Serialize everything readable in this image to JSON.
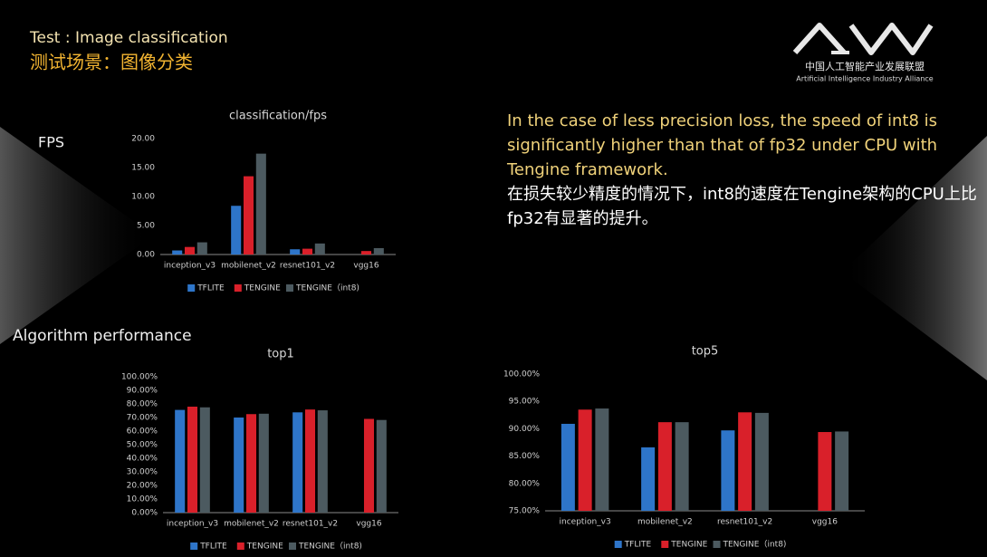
{
  "header": {
    "title": "Test : Image classification",
    "subtitle": "测试场景：图像分类"
  },
  "logo": {
    "name_cn": "中国人工智能产业发展联盟",
    "name_en": "Artificial Intelligence Industry Alliance"
  },
  "sections": {
    "fps": "FPS",
    "performance": "Algorithm performance"
  },
  "description": {
    "en": "In the case of less precision loss, the speed of int8 is significantly higher than that of fp32 under CPU with Tengine framework.",
    "cn": "在损失较少精度的情况下，int8的速度在Tengine架构的CPU上比fp32有显著的提升。"
  },
  "chart_data": [
    {
      "type": "bar",
      "title": "classification/fps",
      "categories": [
        "inception_v3",
        "mobilenet_v2",
        "resnet101_v2",
        "vgg16"
      ],
      "series": [
        {
          "name": "TFLITE",
          "color": "#2e75c9",
          "values": [
            0.7,
            8.4,
            0.9,
            null
          ]
        },
        {
          "name": "TENGINE",
          "color": "#d9202a",
          "values": [
            1.3,
            13.5,
            1.0,
            0.6
          ]
        },
        {
          "name": "TENGINE（int8)",
          "color": "#4c5a60",
          "values": [
            2.1,
            17.4,
            1.9,
            1.1
          ]
        }
      ],
      "ylim": [
        0,
        20
      ],
      "yticks": [
        {
          "value": 0,
          "label": "0.00"
        },
        {
          "value": 5,
          "label": "5.00"
        },
        {
          "value": 10,
          "label": "10.00"
        },
        {
          "value": 15,
          "label": "15.00"
        },
        {
          "value": 20,
          "label": "20.00"
        }
      ]
    },
    {
      "type": "bar",
      "title": "top1",
      "categories": [
        "inception_v3",
        "mobilenet_v2",
        "resnet101_v2",
        "vgg16"
      ],
      "series": [
        {
          "name": "TFLITE",
          "color": "#2e75c9",
          "values": [
            75.6,
            70.0,
            73.8,
            null
          ]
        },
        {
          "name": "TENGINE",
          "color": "#d9202a",
          "values": [
            78.0,
            72.5,
            75.9,
            69.0
          ]
        },
        {
          "name": "TENGINE（int8)",
          "color": "#4c5a60",
          "values": [
            77.5,
            72.8,
            75.3,
            68.2
          ]
        }
      ],
      "ylim": [
        0,
        100
      ],
      "yticks": [
        {
          "value": 0,
          "label": "0.00%"
        },
        {
          "value": 10,
          "label": "10.00%"
        },
        {
          "value": 20,
          "label": "20.00%"
        },
        {
          "value": 30,
          "label": "30.00%"
        },
        {
          "value": 40,
          "label": "40.00%"
        },
        {
          "value": 50,
          "label": "50.00%"
        },
        {
          "value": 60,
          "label": "60.00%"
        },
        {
          "value": 70,
          "label": "70.00%"
        },
        {
          "value": 80,
          "label": "80.00%"
        },
        {
          "value": 90,
          "label": "90.00%"
        },
        {
          "value": 100,
          "label": "100.00%"
        }
      ]
    },
    {
      "type": "bar",
      "title": "top5",
      "categories": [
        "inception_v3",
        "mobilenet_v2",
        "resnet101_v2",
        "vgg16"
      ],
      "series": [
        {
          "name": "TFLITE",
          "color": "#2e75c9",
          "values": [
            90.9,
            86.6,
            89.7,
            null
          ]
        },
        {
          "name": "TENGINE",
          "color": "#d9202a",
          "values": [
            93.5,
            91.2,
            93.0,
            89.4
          ]
        },
        {
          "name": "TENGINE（int8)",
          "color": "#4c5a60",
          "values": [
            93.7,
            91.2,
            92.9,
            89.5
          ]
        }
      ],
      "ylim": [
        75,
        100
      ],
      "yticks": [
        {
          "value": 75,
          "label": "75.00%"
        },
        {
          "value": 80,
          "label": "80.00%"
        },
        {
          "value": 85,
          "label": "85.00%"
        },
        {
          "value": 90,
          "label": "90.00%"
        },
        {
          "value": 95,
          "label": "95.00%"
        },
        {
          "value": 100,
          "label": "100.00%"
        }
      ]
    }
  ]
}
